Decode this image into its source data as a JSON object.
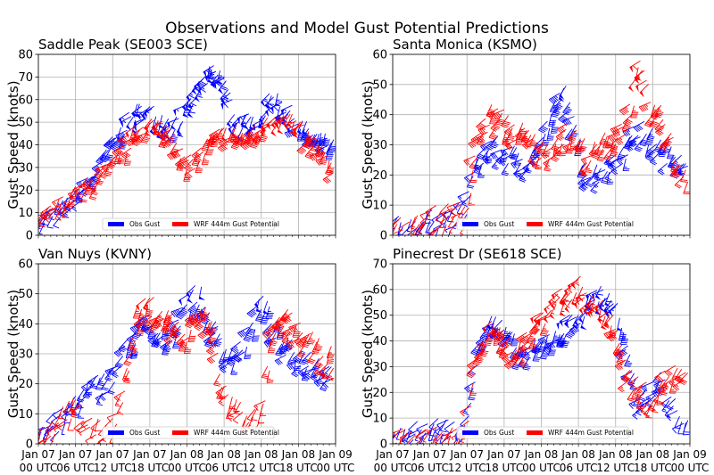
{
  "chart_data": [
    {
      "type": "scatter",
      "marker": "wind-barb",
      "title": "Saddle Peak (SE003 SCE)",
      "xlabel": "",
      "ylabel": "Gust Speed (knots)",
      "ylim": [
        0,
        80
      ],
      "yticks": [
        "0",
        "10",
        "20",
        "30",
        "40",
        "50",
        "60",
        "70",
        "80"
      ],
      "xticks": [
        "Jan 07\n00 UTC",
        "Jan 07\n06 UTC",
        "Jan 07\n12 UTC",
        "Jan 07\n18 UTC",
        "Jan 08\n00 UTC",
        "Jan 08\n06 UTC",
        "Jan 08\n12 UTC",
        "Jan 08\n18 UTC",
        "Jan 09\n00 UTC"
      ],
      "xlim_hours": [
        0,
        48
      ],
      "grid": true,
      "legend": {
        "placement": "lower-center",
        "entries": [
          {
            "label": "Obs Gust",
            "color": "#0000ff"
          },
          {
            "label": "WRF 444m Gust Potential",
            "color": "#ff0000"
          }
        ]
      },
      "series": [
        {
          "name": "Obs Gust",
          "color": "#0000ff",
          "x": [
            0,
            2,
            4,
            6,
            8,
            10,
            12,
            14,
            16,
            18,
            20,
            22,
            24,
            26,
            28,
            30,
            32,
            34,
            36,
            38,
            40,
            42,
            44,
            46,
            48
          ],
          "y": [
            5,
            9,
            12,
            16,
            22,
            30,
            40,
            48,
            55,
            55,
            52,
            50,
            55,
            65,
            72,
            70,
            52,
            50,
            52,
            62,
            57,
            50,
            45,
            42,
            38
          ]
        },
        {
          "name": "WRF 444m Gust Potential",
          "color": "#ff0000",
          "x": [
            0,
            2,
            4,
            6,
            8,
            10,
            12,
            14,
            16,
            18,
            20,
            22,
            24,
            26,
            28,
            30,
            32,
            34,
            36,
            38,
            40,
            42,
            44,
            46,
            48
          ],
          "y": [
            6,
            10,
            14,
            18,
            22,
            26,
            30,
            38,
            46,
            50,
            48,
            46,
            30,
            35,
            42,
            45,
            46,
            44,
            46,
            52,
            55,
            48,
            42,
            38,
            25
          ]
        }
      ]
    },
    {
      "type": "scatter",
      "marker": "wind-barb",
      "title": "Santa Monica (KSMO)",
      "xlabel": "",
      "ylabel": "Gust Speed (knots)",
      "ylim": [
        0,
        60
      ],
      "yticks": [
        "0",
        "10",
        "20",
        "30",
        "40",
        "50",
        "60"
      ],
      "xticks": [
        "Jan 07\n00 UTC",
        "Jan 07\n06 UTC",
        "Jan 07\n12 UTC",
        "Jan 07\n18 UTC",
        "Jan 08\n00 UTC",
        "Jan 08\n06 UTC",
        "Jan 08\n12 UTC",
        "Jan 08\n18 UTC",
        "Jan 09\n00 UTC"
      ],
      "xlim_hours": [
        0,
        48
      ],
      "grid": true,
      "legend": {
        "placement": "lower-center",
        "entries": [
          {
            "label": "Obs Gust",
            "color": "#0000ff"
          },
          {
            "label": "WRF 444m Gust Potential",
            "color": "#ff0000"
          }
        ]
      },
      "series": [
        {
          "name": "Obs Gust",
          "color": "#0000ff",
          "x": [
            0,
            2,
            4,
            6,
            8,
            10,
            12,
            14,
            16,
            18,
            20,
            22,
            24,
            26,
            28,
            30,
            32,
            34,
            36,
            38,
            40,
            42,
            44,
            46,
            48
          ],
          "y": [
            3,
            2,
            4,
            5,
            6,
            5,
            10,
            25,
            30,
            28,
            26,
            25,
            30,
            40,
            48,
            30,
            20,
            22,
            25,
            30,
            35,
            32,
            28,
            27,
            26
          ]
        },
        {
          "name": "WRF 444m Gust Potential",
          "color": "#ff0000",
          "x": [
            0,
            2,
            4,
            6,
            8,
            10,
            12,
            14,
            16,
            18,
            20,
            22,
            24,
            26,
            28,
            30,
            32,
            34,
            36,
            38,
            40,
            42,
            44,
            46,
            48
          ],
          "y": [
            2,
            3,
            3,
            5,
            7,
            8,
            6,
            32,
            40,
            38,
            35,
            33,
            28,
            30,
            34,
            32,
            26,
            30,
            33,
            38,
            55,
            42,
            38,
            25,
            20
          ]
        }
      ]
    },
    {
      "type": "scatter",
      "marker": "wind-barb",
      "title": "Van Nuys (KVNY)",
      "xlabel": "",
      "ylabel": "Gust Speed (knots)",
      "ylim": [
        0,
        60
      ],
      "yticks": [
        "0",
        "10",
        "20",
        "30",
        "40",
        "50",
        "60"
      ],
      "xticks": [
        "Jan 07\n00 UTC",
        "Jan 07\n06 UTC",
        "Jan 07\n12 UTC",
        "Jan 07\n18 UTC",
        "Jan 08\n00 UTC",
        "Jan 08\n06 UTC",
        "Jan 08\n12 UTC",
        "Jan 08\n18 UTC",
        "Jan 09\n00 UTC"
      ],
      "xlim_hours": [
        0,
        48
      ],
      "grid": true,
      "legend": {
        "placement": "lower-center",
        "entries": [
          {
            "label": "Obs Gust",
            "color": "#0000ff"
          },
          {
            "label": "WRF 444m Gust Potential",
            "color": "#ff0000"
          }
        ]
      },
      "series": [
        {
          "name": "Obs Gust",
          "color": "#0000ff",
          "x": [
            0,
            2,
            4,
            6,
            8,
            10,
            12,
            14,
            16,
            18,
            20,
            22,
            24,
            26,
            28,
            30,
            32,
            34,
            36,
            38,
            40,
            42,
            44,
            46,
            48
          ],
          "y": [
            4,
            6,
            8,
            14,
            18,
            20,
            22,
            30,
            38,
            40,
            35,
            38,
            48,
            50,
            40,
            32,
            30,
            35,
            48,
            40,
            32,
            30,
            28,
            26,
            24
          ]
        },
        {
          "name": "WRF 444m Gust Potential",
          "color": "#ff0000",
          "x": [
            0,
            2,
            4,
            6,
            8,
            10,
            12,
            14,
            16,
            18,
            20,
            22,
            24,
            26,
            28,
            30,
            32,
            34,
            36,
            38,
            40,
            42,
            44,
            46,
            48
          ],
          "y": [
            3,
            5,
            10,
            12,
            8,
            4,
            6,
            18,
            42,
            46,
            44,
            40,
            35,
            44,
            40,
            18,
            12,
            10,
            8,
            36,
            42,
            38,
            34,
            30,
            28
          ]
        }
      ]
    },
    {
      "type": "scatter",
      "marker": "wind-barb",
      "title": "Pinecrest Dr (SE618 SCE)",
      "xlabel": "",
      "ylabel": "Gust Speed (knots)",
      "ylim": [
        0,
        70
      ],
      "yticks": [
        "0",
        "10",
        "20",
        "30",
        "40",
        "50",
        "60",
        "70"
      ],
      "xticks": [
        "Jan 07\n00 UTC",
        "Jan 07\n06 UTC",
        "Jan 07\n12 UTC",
        "Jan 07\n18 UTC",
        "Jan 08\n00 UTC",
        "Jan 08\n06 UTC",
        "Jan 08\n12 UTC",
        "Jan 08\n18 UTC",
        "Jan 09\n00 UTC"
      ],
      "xlim_hours": [
        0,
        48
      ],
      "grid": true,
      "legend": {
        "placement": "lower-center",
        "entries": [
          {
            "label": "Obs Gust",
            "color": "#0000ff"
          },
          {
            "label": "WRF 444m Gust Potential",
            "color": "#ff0000"
          }
        ]
      },
      "series": [
        {
          "name": "Obs Gust",
          "color": "#0000ff",
          "x": [
            0,
            2,
            4,
            6,
            8,
            10,
            12,
            14,
            16,
            18,
            20,
            22,
            24,
            26,
            28,
            30,
            32,
            34,
            36,
            38,
            40,
            42,
            44,
            46,
            48
          ],
          "y": [
            2,
            3,
            5,
            6,
            7,
            6,
            4,
            40,
            48,
            44,
            38,
            35,
            38,
            42,
            45,
            50,
            55,
            60,
            55,
            35,
            15,
            22,
            25,
            12,
            5
          ]
        },
        {
          "name": "WRF 444m Gust Potential",
          "color": "#ff0000",
          "x": [
            0,
            2,
            4,
            6,
            8,
            10,
            12,
            14,
            16,
            18,
            20,
            22,
            24,
            26,
            28,
            30,
            32,
            34,
            36,
            38,
            40,
            42,
            44,
            46,
            48
          ],
          "y": [
            2,
            2,
            2,
            3,
            3,
            3,
            4,
            38,
            44,
            42,
            36,
            40,
            48,
            55,
            58,
            62,
            58,
            52,
            48,
            28,
            22,
            18,
            25,
            28,
            24
          ]
        }
      ]
    }
  ],
  "figure": {
    "suptitle": "Observations and Model Gust Potential Predictions"
  }
}
